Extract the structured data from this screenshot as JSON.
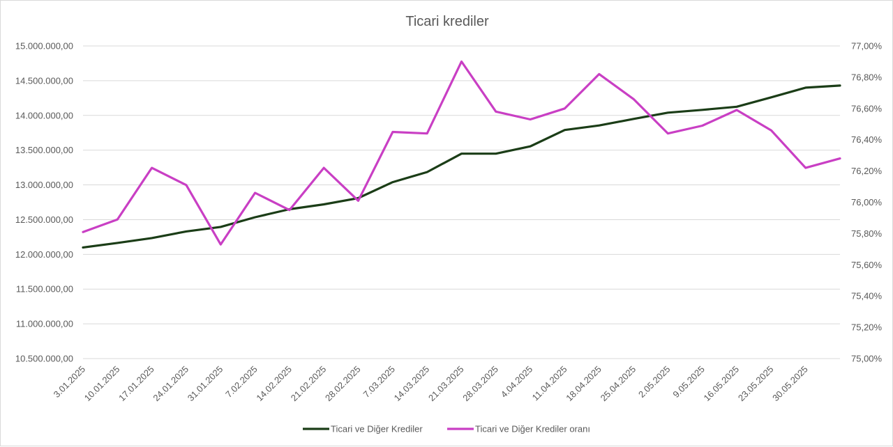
{
  "chart_data": {
    "type": "line",
    "title": "Ticari krediler",
    "x": [
      "3.01.2025",
      "10.01.2025",
      "17.01.2025",
      "24.01.2025",
      "31.01.2025",
      "7.02.2025",
      "14.02.2025",
      "21.02.2025",
      "28.02.2025",
      "7.03.2025",
      "14.03.2025",
      "21.03.2025",
      "28.03.2025",
      "4.04.2025",
      "11.04.2025",
      "18.04.2025",
      "25.04.2025",
      "2.05.2025",
      "9.05.2025",
      "16.05.2025",
      "23.05.2025",
      "30.05.2025",
      ""
    ],
    "y_left_ticks": [
      "10.500.000,00",
      "11.000.000,00",
      "11.500.000,00",
      "12.000.000,00",
      "12.500.000,00",
      "13.000.000,00",
      "13.500.000,00",
      "14.000.000,00",
      "14.500.000,00",
      "15.000.000,00"
    ],
    "y_right_ticks": [
      "75,00%",
      "75,20%",
      "75,40%",
      "75,60%",
      "75,80%",
      "76,00%",
      "76,20%",
      "76,40%",
      "76,60%",
      "76,80%",
      "77,00%"
    ],
    "ylim_left": [
      10500000,
      15000000
    ],
    "ylim_right": [
      75.0,
      77.0
    ],
    "grid": true,
    "legend_position": "bottom",
    "series": [
      {
        "name": "Ticari ve Diğer Krediler",
        "axis": "left",
        "color": "#1b3d17",
        "values": [
          12100000,
          12165000,
          12235000,
          12330000,
          12395000,
          12535000,
          12650000,
          12720000,
          12810000,
          13040000,
          13185000,
          13450000,
          13450000,
          13555000,
          13790000,
          13855000,
          13950000,
          14040000,
          14080000,
          14125000,
          14260000,
          14400000,
          14430000
        ]
      },
      {
        "name": "Ticari ve Diğer Krediler oranı",
        "axis": "right",
        "color": "#c93fc4",
        "values": [
          75.81,
          75.89,
          76.22,
          76.11,
          75.73,
          76.06,
          75.95,
          76.22,
          76.01,
          76.45,
          76.44,
          76.9,
          76.58,
          76.53,
          76.6,
          76.82,
          76.66,
          76.44,
          76.49,
          76.59,
          76.46,
          76.22,
          76.28
        ]
      }
    ]
  }
}
